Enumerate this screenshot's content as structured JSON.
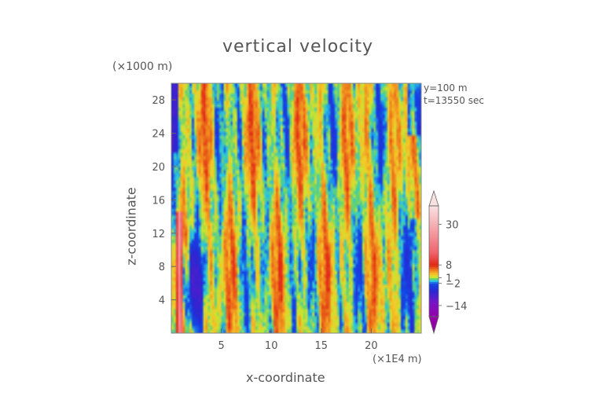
{
  "chart_data": {
    "type": "heatmap",
    "title": "vertical velocity",
    "xlabel": "x-coordinate",
    "ylabel": "z-coordinate",
    "x_unit": "(×1E4 m)",
    "y_unit": "(×1000 m)",
    "annotations": [
      "y=100  m",
      "t=13550 sec"
    ],
    "xlim": [
      0,
      25
    ],
    "ylim": [
      0,
      30
    ],
    "x_ticks": [
      5,
      10,
      15,
      20
    ],
    "y_ticks": [
      4,
      8,
      12,
      16,
      20,
      24,
      28
    ],
    "colorbar": {
      "labels": [
        "30",
        "8",
        "1",
        "−2",
        "−14"
      ],
      "label_values": [
        30,
        8,
        1,
        -2,
        -14
      ],
      "range": [
        -20,
        40
      ]
    }
  }
}
